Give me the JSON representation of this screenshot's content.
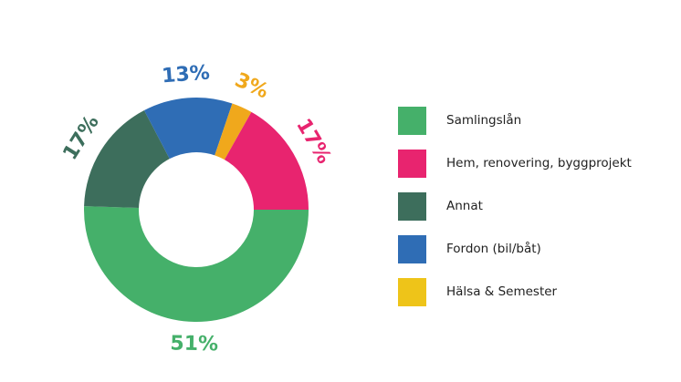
{
  "chart_data": {
    "type": "pie",
    "title": "",
    "donut": true,
    "legend_position": "right",
    "slices": [
      {
        "name": "Samlingslån",
        "value": 51,
        "label": "51%",
        "color": "#45b06a"
      },
      {
        "name": "Annat",
        "value": 17,
        "label": "17%",
        "color": "#3d6e5c"
      },
      {
        "name": "Fordon (bil/båt)",
        "value": 13,
        "label": "13%",
        "color": "#2f6db5"
      },
      {
        "name": "Hälsa & Semester",
        "value": 3,
        "label": "3%",
        "color": "#f0a81c"
      },
      {
        "name": "Hem, renovering, byggprojekt",
        "value": 17,
        "label": "17%",
        "color": "#e8246f"
      }
    ],
    "legend": [
      {
        "name": "Samlingslån",
        "color": "#45b06a"
      },
      {
        "name": "Hem, renovering, byggprojekt",
        "color": "#e8246f"
      },
      {
        "name": "Annat",
        "color": "#3d6e5c"
      },
      {
        "name": "Fordon (bil/båt)",
        "color": "#2f6db5"
      },
      {
        "name": "Hälsa & Semester",
        "color": "#eec419"
      }
    ]
  }
}
